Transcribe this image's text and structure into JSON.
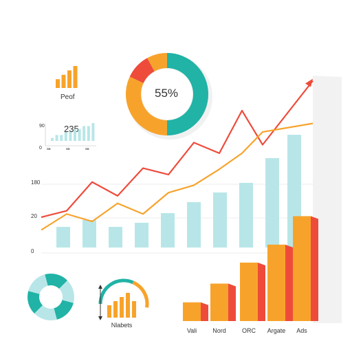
{
  "colors": {
    "teal": "#20b3a6",
    "orange": "#f7a32b",
    "red": "#ee4b3b",
    "lightTeal": "#b8e6e8",
    "gridline": "#e8e8e8"
  },
  "mini_bar_label": "Peof",
  "donut_label": "55%",
  "gauge_label": "Nlabets",
  "sparkline": {
    "value": "235",
    "y_ticks": [
      "90",
      "0"
    ],
    "x_ticks": [
      "aa",
      "aa",
      "aa"
    ]
  },
  "chart_data": [
    {
      "type": "bar",
      "role": "mini-bars",
      "values": [
        2,
        3,
        4,
        5
      ]
    },
    {
      "type": "pie",
      "role": "donut-main",
      "slices": [
        {
          "value": 50,
          "color": "#20b3a6"
        },
        {
          "value": 32,
          "color": "#f7a32b"
        },
        {
          "value": 10,
          "color": "#ee4b3b"
        },
        {
          "value": 8,
          "color": "#f7a32b"
        }
      ]
    },
    {
      "type": "bar",
      "role": "sparkline-bars",
      "values": [
        1,
        2,
        2,
        3,
        3,
        4,
        4,
        5,
        5,
        6
      ]
    },
    {
      "type": "line",
      "role": "main-combo",
      "y_ticks": [
        "180",
        "20",
        "0"
      ],
      "bars": [
        15,
        20,
        15,
        18,
        25,
        33,
        40,
        47,
        65,
        82
      ],
      "series": [
        {
          "color": "#ee4b3b",
          "values": [
            22,
            28,
            55,
            42,
            68,
            62,
            92,
            82,
            122,
            90,
            150
          ]
        },
        {
          "color": "#f7a32b",
          "values": [
            10,
            25,
            18,
            35,
            25,
            45,
            52,
            67,
            82,
            102,
            110
          ]
        }
      ]
    },
    {
      "type": "pie",
      "role": "donut-small",
      "slices": [
        {
          "value": 1,
          "color": "#20b3a6"
        },
        {
          "value": 1,
          "color": "#b8e6e8"
        },
        {
          "value": 1,
          "color": "#20b3a6"
        },
        {
          "value": 1,
          "color": "#b8e6e8"
        },
        {
          "value": 1,
          "color": "#20b3a6"
        },
        {
          "value": 1,
          "color": "#b8e6e8"
        }
      ]
    },
    {
      "type": "bar",
      "role": "gauge-bars",
      "values": [
        3,
        4,
        5,
        6,
        4
      ],
      "gauge_fraction": 0.6
    },
    {
      "type": "bar",
      "role": "bottom-right-3d",
      "categories": [
        "Vali",
        "Nord",
        "ORC",
        "Argate",
        "Ads"
      ],
      "values": [
        25,
        50,
        78,
        102,
        140
      ]
    }
  ]
}
